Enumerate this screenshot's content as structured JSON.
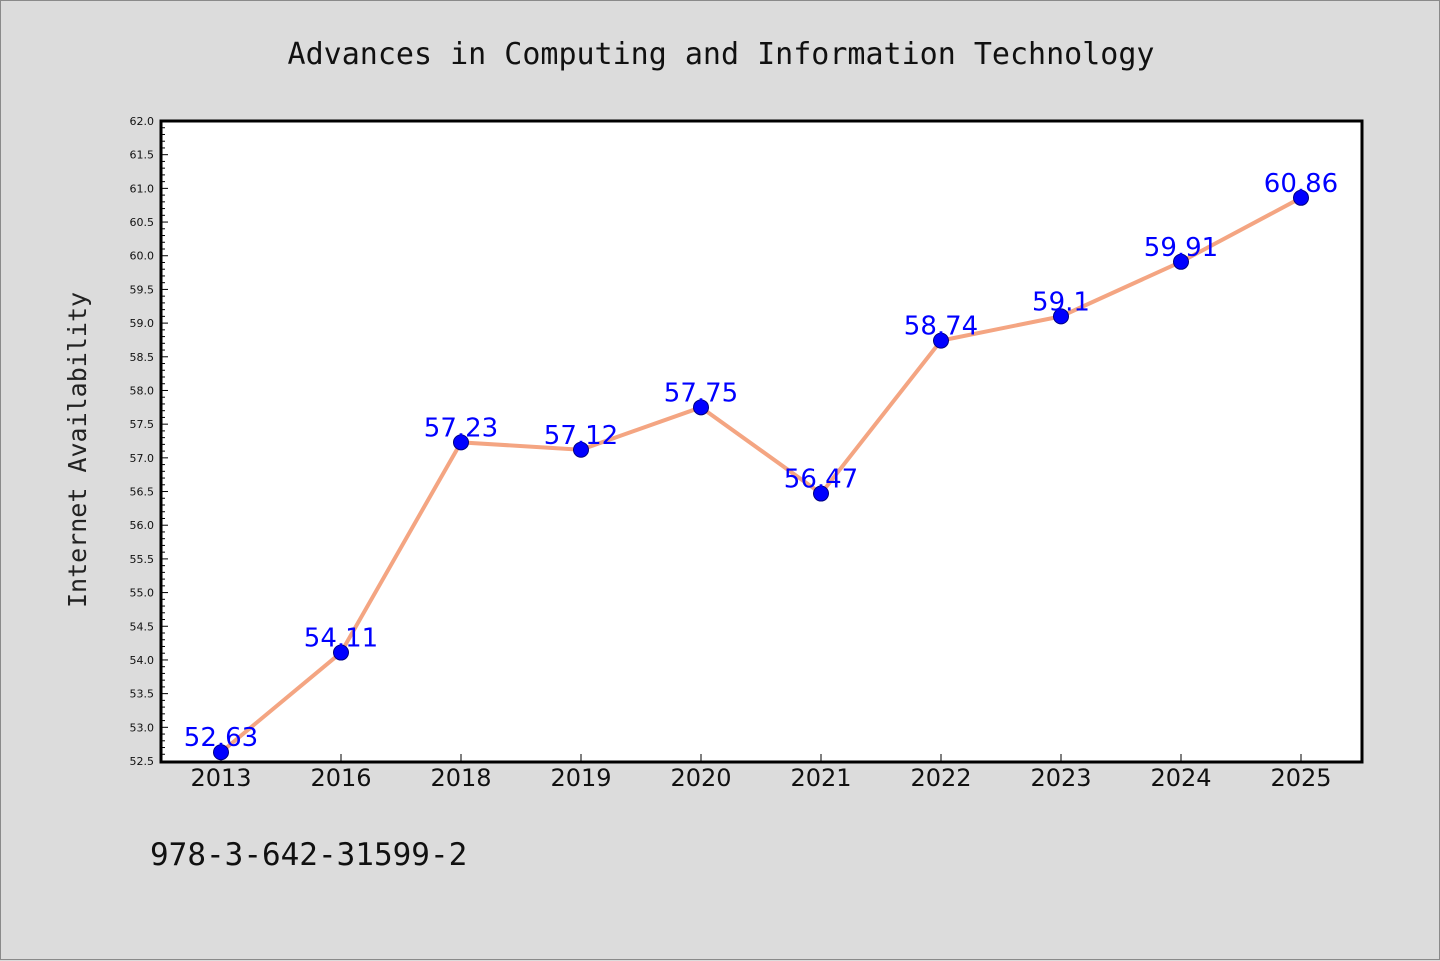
{
  "chart_data": {
    "type": "line",
    "title": "Advances in Computing and Information Technology",
    "xlabel": "",
    "ylabel": "Internet Availability",
    "categories": [
      "2013",
      "2016",
      "2018",
      "2019",
      "2020",
      "2021",
      "2022",
      "2023",
      "2024",
      "2025"
    ],
    "series": [
      {
        "values": [
          52.63,
          54.11,
          57.23,
          57.12,
          57.75,
          56.47,
          58.74,
          59.1,
          59.91,
          60.86
        ],
        "data_labels": [
          "52.63",
          "54.11",
          "57.23",
          "57.12",
          "57.75",
          "56.47",
          "58.74",
          "59.1",
          "59.91",
          "60.86"
        ]
      }
    ],
    "ylim": [
      52.5,
      62.0
    ],
    "ytick_step": 0.5,
    "yticks": [
      "52.5",
      "53.0",
      "53.5",
      "54.0",
      "54.5",
      "55.0",
      "55.5",
      "56.0",
      "56.5",
      "57.0",
      "57.5",
      "58.0",
      "58.5",
      "59.0",
      "59.5",
      "60.0",
      "60.5",
      "61.0",
      "61.5",
      "62.0"
    ],
    "grid": false,
    "legend": "none",
    "colors": {
      "line": "#f4a582",
      "marker": "#0000ff",
      "marker_edge": "#000080",
      "label": "#0000ff",
      "background": "#dcdcdc",
      "plot_background": "#ffffff"
    }
  },
  "footer": {
    "isbn": "978-3-642-31599-2"
  }
}
